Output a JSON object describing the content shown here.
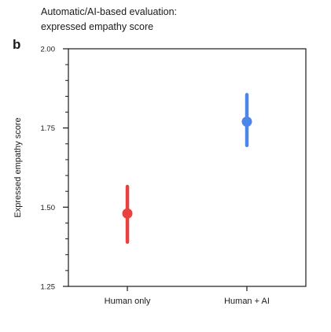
{
  "figure": {
    "panel_label": "b",
    "title_line1": "Automatic/AI-based evaluation:",
    "title_line2": "expressed empathy score"
  },
  "chart_data": {
    "type": "scatter",
    "title": "Automatic/AI-based evaluation: expressed empathy score",
    "xlabel": "",
    "ylabel": "Expressed empathy score",
    "categories": [
      "Human only",
      "Human + AI"
    ],
    "ylim": [
      1.25,
      2.0
    ],
    "yticks": [
      1.25,
      1.5,
      1.75,
      2.0
    ],
    "ytick_labels": [
      "1.25",
      "1.50",
      "1.75",
      "2.00"
    ],
    "minor_tick_step": 0.05,
    "grid": false,
    "series": [
      {
        "name": "Human only",
        "category": "Human only",
        "mean": 1.48,
        "lower": 1.39,
        "upper": 1.565,
        "color": "#e8413f"
      },
      {
        "name": "Human + AI",
        "category": "Human + AI",
        "mean": 1.77,
        "lower": 1.695,
        "upper": 1.855,
        "color": "#4b86e8"
      }
    ]
  }
}
